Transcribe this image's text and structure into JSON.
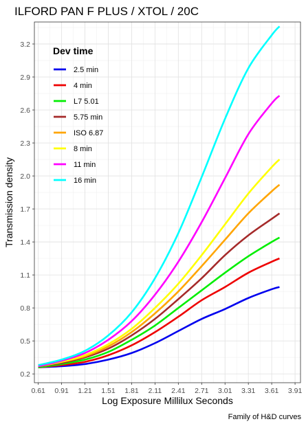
{
  "chart_data": {
    "type": "line",
    "title": "ILFORD PAN F PLUS / XTOL / 20C",
    "xlabel": "Log Exposure Millilux Seconds",
    "ylabel": "Transmission density",
    "caption": "Family of H&D curves",
    "xlim": [
      0.56,
      3.98
    ],
    "ylim": [
      0.12,
      3.4
    ],
    "x_ticks": [
      0.61,
      0.91,
      1.21,
      1.51,
      1.81,
      2.11,
      2.41,
      2.71,
      3.01,
      3.31,
      3.61,
      3.91
    ],
    "x_tick_labels": [
      "0.61",
      "0.91",
      "1.21",
      "1.51",
      "1.81",
      "2.11",
      "2.41",
      "2.71",
      "3.01",
      "3.31",
      "3.61",
      "3.91"
    ],
    "y_ticks": [
      0.2,
      0.5,
      0.8,
      1.1,
      1.4,
      1.7,
      2.0,
      2.3,
      2.6,
      2.9,
      3.2
    ],
    "y_tick_labels": [
      "0.2",
      "0.5",
      "0.8",
      "1.1",
      "1.4",
      "1.7",
      "2.0",
      "2.3",
      "2.6",
      "2.9",
      "3.2"
    ],
    "grid": true,
    "legend": {
      "title": "Dev time",
      "placement": "top-left"
    },
    "series": [
      {
        "name": "2.5 min",
        "color": "#0000ee",
        "x": [
          0.61,
          0.91,
          1.21,
          1.51,
          1.81,
          2.11,
          2.41,
          2.71,
          3.01,
          3.31,
          3.61,
          3.71
        ],
        "y": [
          0.26,
          0.27,
          0.29,
          0.33,
          0.39,
          0.48,
          0.59,
          0.7,
          0.79,
          0.89,
          0.97,
          0.99
        ]
      },
      {
        "name": "4 min",
        "color": "#ee0000",
        "x": [
          0.61,
          0.91,
          1.21,
          1.51,
          1.81,
          2.11,
          2.41,
          2.71,
          3.01,
          3.31,
          3.61,
          3.71
        ],
        "y": [
          0.26,
          0.28,
          0.31,
          0.37,
          0.46,
          0.58,
          0.72,
          0.87,
          0.99,
          1.12,
          1.22,
          1.25
        ]
      },
      {
        "name": "L7 5.01",
        "color": "#00ee00",
        "x": [
          0.61,
          0.91,
          1.21,
          1.51,
          1.81,
          2.11,
          2.41,
          2.71,
          3.01,
          3.31,
          3.61,
          3.71
        ],
        "y": [
          0.26,
          0.29,
          0.33,
          0.4,
          0.51,
          0.64,
          0.8,
          0.96,
          1.12,
          1.27,
          1.4,
          1.44
        ]
      },
      {
        "name": "5.75 min",
        "color": "#a52a2a",
        "x": [
          0.61,
          0.91,
          1.21,
          1.51,
          1.81,
          2.11,
          2.41,
          2.71,
          3.01,
          3.31,
          3.61,
          3.71
        ],
        "y": [
          0.27,
          0.3,
          0.35,
          0.43,
          0.55,
          0.7,
          0.88,
          1.07,
          1.28,
          1.46,
          1.61,
          1.66
        ]
      },
      {
        "name": "ISO 6.87",
        "color": "#ffa500",
        "x": [
          0.61,
          0.91,
          1.21,
          1.51,
          1.81,
          2.11,
          2.41,
          2.71,
          3.01,
          3.31,
          3.61,
          3.71
        ],
        "y": [
          0.27,
          0.31,
          0.36,
          0.45,
          0.58,
          0.75,
          0.95,
          1.18,
          1.42,
          1.66,
          1.86,
          1.92
        ]
      },
      {
        "name": "8 min",
        "color": "#ffff00",
        "x": [
          0.61,
          0.91,
          1.21,
          1.51,
          1.81,
          2.11,
          2.41,
          2.71,
          3.01,
          3.31,
          3.61,
          3.71
        ],
        "y": [
          0.27,
          0.31,
          0.37,
          0.47,
          0.61,
          0.8,
          1.02,
          1.28,
          1.56,
          1.84,
          2.08,
          2.15
        ]
      },
      {
        "name": "11 min",
        "color": "#ff00ff",
        "x": [
          0.61,
          0.91,
          1.21,
          1.51,
          1.81,
          2.11,
          2.41,
          2.71,
          3.01,
          3.31,
          3.61,
          3.71
        ],
        "y": [
          0.27,
          0.32,
          0.39,
          0.51,
          0.68,
          0.92,
          1.22,
          1.58,
          1.98,
          2.38,
          2.66,
          2.73
        ]
      },
      {
        "name": "16 min",
        "color": "#00ffff",
        "x": [
          0.61,
          0.91,
          1.21,
          1.51,
          1.81,
          2.11,
          2.41,
          2.71,
          3.01,
          3.31,
          3.61,
          3.71
        ],
        "y": [
          0.28,
          0.33,
          0.41,
          0.55,
          0.76,
          1.07,
          1.48,
          1.99,
          2.52,
          2.98,
          3.28,
          3.36
        ]
      }
    ]
  }
}
